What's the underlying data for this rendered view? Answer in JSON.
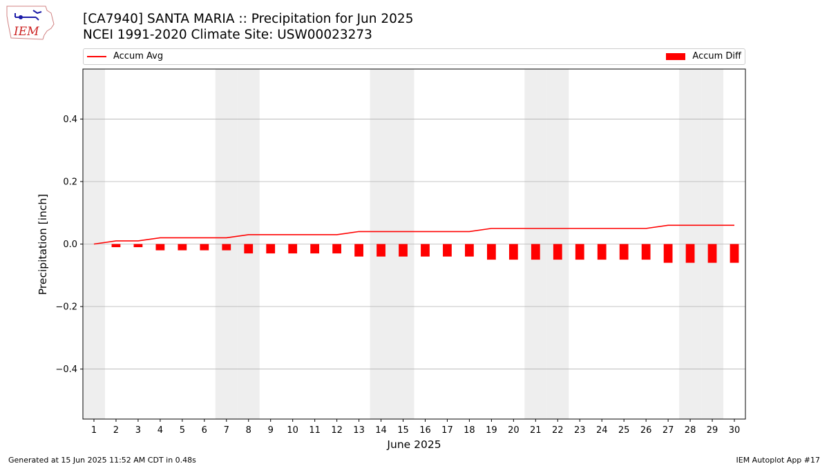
{
  "header": {
    "logo_text": "IEM",
    "title_line1": "[CA7940] SANTA MARIA :: Precipitation for Jun 2025",
    "title_line2": "NCEI 1991-2020 Climate Site: USW00023273"
  },
  "footer": {
    "generated": "Generated at 15 Jun 2025 11:52 AM CDT in 0.48s",
    "app": "IEM Autoplot App #17"
  },
  "colors": {
    "accum_avg": "#ff0000",
    "accum_diff": "#ff0000",
    "weekend_shade": "#eeeeee",
    "grid": "#b0b0b0"
  },
  "chart_data": {
    "type": "bar",
    "xlabel": "June 2025",
    "ylabel": "Precipitation [inch]",
    "ylim": [
      -0.56,
      0.56
    ],
    "yticks": [
      -0.4,
      -0.2,
      0.0,
      0.2,
      0.4
    ],
    "ytick_labels": [
      "−0.4",
      "−0.2",
      "0.0",
      "0.2",
      "0.4"
    ],
    "x": [
      1,
      2,
      3,
      4,
      5,
      6,
      7,
      8,
      9,
      10,
      11,
      12,
      13,
      14,
      15,
      16,
      17,
      18,
      19,
      20,
      21,
      22,
      23,
      24,
      25,
      26,
      27,
      28,
      29,
      30
    ],
    "weekend_days": [
      1,
      7,
      8,
      14,
      15,
      21,
      22,
      28,
      29
    ],
    "grid": "y",
    "legend_placement": "top",
    "series": [
      {
        "name": "Accum Avg",
        "kind": "line",
        "values": [
          0.0,
          0.01,
          0.01,
          0.02,
          0.02,
          0.02,
          0.02,
          0.03,
          0.03,
          0.03,
          0.03,
          0.03,
          0.04,
          0.04,
          0.04,
          0.04,
          0.04,
          0.04,
          0.05,
          0.05,
          0.05,
          0.05,
          0.05,
          0.05,
          0.05,
          0.05,
          0.06,
          0.06,
          0.06,
          0.06
        ]
      },
      {
        "name": "Accum Diff",
        "kind": "bar",
        "values": [
          0.0,
          -0.01,
          -0.01,
          -0.02,
          -0.02,
          -0.02,
          -0.02,
          -0.03,
          -0.03,
          -0.03,
          -0.03,
          -0.03,
          -0.04,
          -0.04,
          -0.04,
          -0.04,
          -0.04,
          -0.04,
          -0.05,
          -0.05,
          -0.05,
          -0.05,
          -0.05,
          -0.05,
          -0.05,
          -0.05,
          -0.06,
          -0.06,
          -0.06,
          -0.06
        ]
      }
    ]
  }
}
